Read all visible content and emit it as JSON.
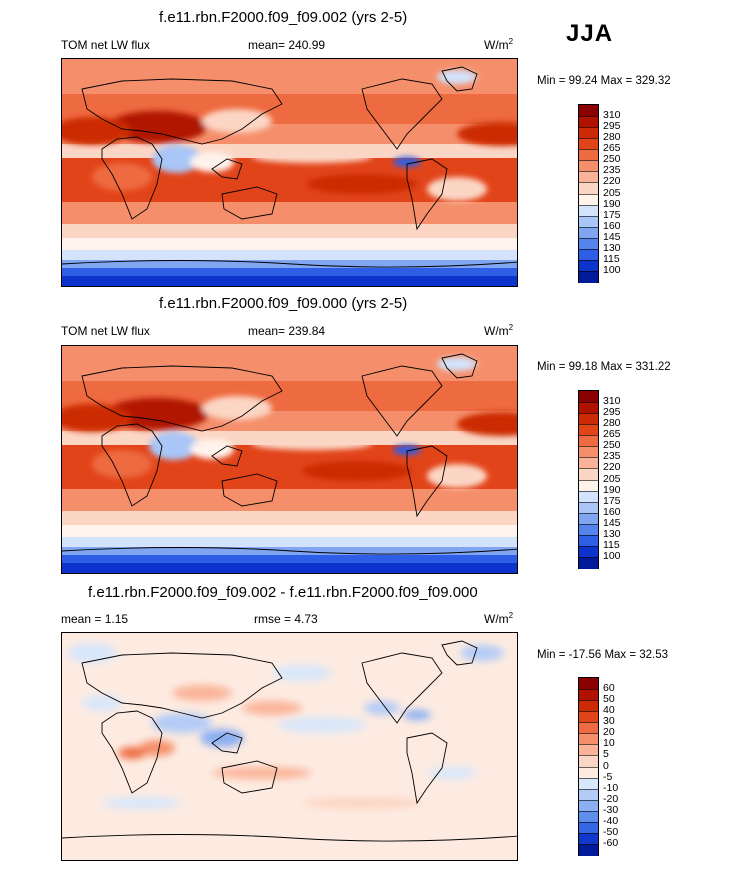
{
  "season": "JJA",
  "panels": [
    {
      "title": "f.e11.rbn.F2000.f09_f09.002 (yrs 2-5)",
      "left_label": "TOM net LW flux",
      "center_label": "mean= 240.99",
      "units": "W/m",
      "units_exp": "2",
      "minmax": "Min =  99.24 Max = 329.32",
      "colorbar": {
        "labels": [
          "310",
          "295",
          "280",
          "265",
          "250",
          "235",
          "220",
          "205",
          "190",
          "175",
          "160",
          "145",
          "130",
          "115",
          "100"
        ],
        "colors": [
          "#8b0000",
          "#b01200",
          "#cc2a05",
          "#e2441a",
          "#ee6a40",
          "#f58f6b",
          "#fab398",
          "#fcd6c4",
          "#fff3ec",
          "#d2e3fb",
          "#a9c6f7",
          "#80a6f2",
          "#5585ec",
          "#2e5ee6",
          "#0c33cc",
          "#001a99"
        ]
      },
      "map_style": "absolute"
    },
    {
      "title": "f.e11.rbn.F2000.f09_f09.000 (yrs 2-5)",
      "left_label": "TOM net LW flux",
      "center_label": "mean= 239.84",
      "units": "W/m",
      "units_exp": "2",
      "minmax": "Min =  99.18 Max = 331.22",
      "colorbar": {
        "labels": [
          "310",
          "295",
          "280",
          "265",
          "250",
          "235",
          "220",
          "205",
          "190",
          "175",
          "160",
          "145",
          "130",
          "115",
          "100"
        ],
        "colors": [
          "#8b0000",
          "#b01200",
          "#cc2a05",
          "#e2441a",
          "#ee6a40",
          "#f58f6b",
          "#fab398",
          "#fcd6c4",
          "#fff3ec",
          "#d2e3fb",
          "#a9c6f7",
          "#80a6f2",
          "#5585ec",
          "#2e5ee6",
          "#0c33cc",
          "#001a99"
        ]
      },
      "map_style": "absolute"
    },
    {
      "title": "f.e11.rbn.F2000.f09_f09.002 - f.e11.rbn.F2000.f09_f09.000",
      "left_label": "mean =   1.15",
      "center_label": "rmse =   4.73",
      "units": "W/m",
      "units_exp": "2",
      "minmax": "Min = -17.56 Max =  32.53",
      "colorbar": {
        "labels": [
          "60",
          "50",
          "40",
          "30",
          "20",
          "10",
          "5",
          "0",
          "-5",
          "-10",
          "-20",
          "-30",
          "-40",
          "-50",
          "-60"
        ],
        "colors": [
          "#8b0000",
          "#b01200",
          "#cc2a05",
          "#e2441a",
          "#ee6a40",
          "#f58f6b",
          "#fab398",
          "#fcd6c4",
          "#fdebe1",
          "#d8e7fb",
          "#b3ccf7",
          "#8aaff2",
          "#5f8eed",
          "#3466e6",
          "#1237cc",
          "#001a99"
        ]
      },
      "map_style": "difference"
    }
  ]
}
